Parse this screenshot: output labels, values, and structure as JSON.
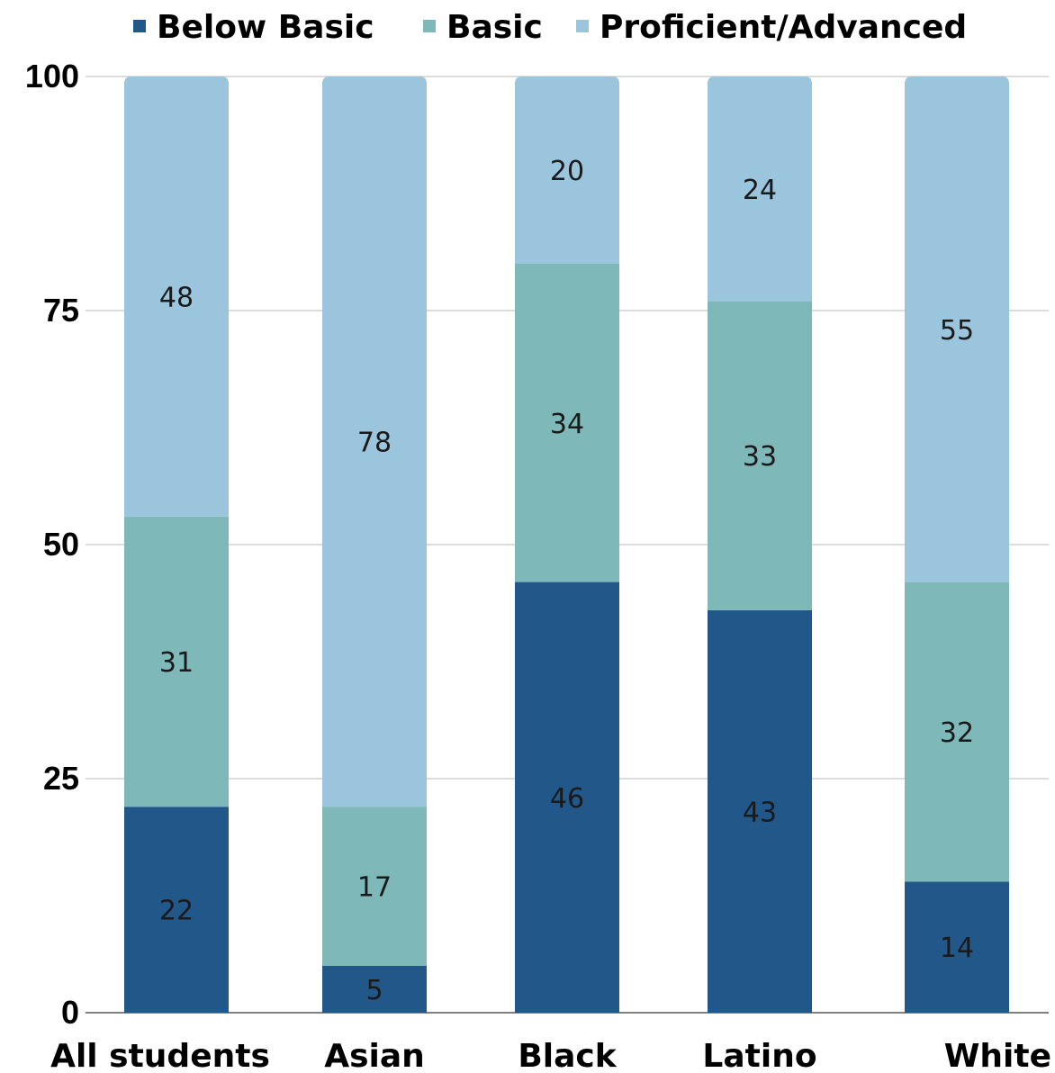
{
  "chart_data": {
    "type": "bar",
    "stacked": true,
    "categories": [
      "All students",
      "Asian",
      "Black",
      "Latino",
      "White"
    ],
    "series": [
      {
        "name": "Below Basic",
        "values": [
          22,
          5,
          46,
          43,
          14
        ],
        "color": "#22578a"
      },
      {
        "name": "Basic",
        "values": [
          31,
          17,
          34,
          33,
          32
        ],
        "color": "#7fb8b8"
      },
      {
        "name": "Proficient/Advanced",
        "values": [
          48,
          78,
          20,
          24,
          55
        ],
        "color": "#9bc4dd"
      }
    ],
    "title": "",
    "xlabel": "",
    "ylabel": "",
    "ylim": [
      0,
      100
    ],
    "yticks": [
      0,
      25,
      50,
      75,
      100
    ],
    "grid": true,
    "legend_position": "top"
  }
}
